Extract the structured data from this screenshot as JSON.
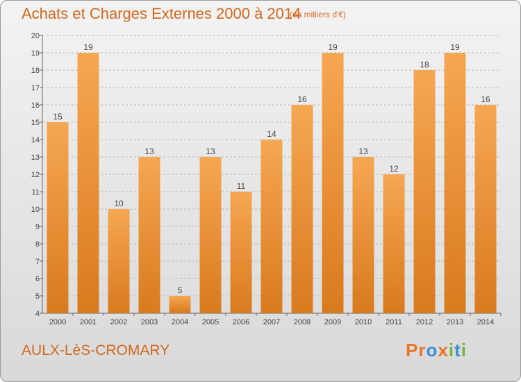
{
  "header": {
    "title": "Achats et Charges Externes 2000 à 2014",
    "subtitle": "(en milliers d'€)"
  },
  "footer": {
    "commune": "AULX-LèS-CROMARY",
    "logo_text": "Proxiti",
    "logo_letters": [
      {
        "ch": "P",
        "color": "#e8752a"
      },
      {
        "ch": "r",
        "color": "#e8752a"
      },
      {
        "ch": "o",
        "color": "#3a8fd6"
      },
      {
        "ch": "x",
        "color": "#e8752a"
      },
      {
        "ch": "i",
        "color": "#7ab33b"
      },
      {
        "ch": "t",
        "color": "#3a8fd6"
      },
      {
        "ch": "i",
        "color": "#7ab33b"
      }
    ]
  },
  "colors": {
    "accent": "#d2691e",
    "bar_light": "#f6a752",
    "bar_dark": "#d97a1e",
    "grid": "#b8b8b8"
  },
  "chart_data": {
    "type": "bar",
    "title": "Achats et Charges Externes 2000 à 2014",
    "subtitle": "(en milliers d'€)",
    "categories": [
      "2000",
      "2001",
      "2002",
      "2003",
      "2004",
      "2005",
      "2006",
      "2007",
      "2008",
      "2009",
      "2010",
      "2011",
      "2012",
      "2013",
      "2014"
    ],
    "values": [
      15,
      19,
      10,
      13,
      5,
      13,
      11,
      14,
      16,
      19,
      13,
      12,
      18,
      19,
      16
    ],
    "ylim": [
      4,
      20
    ],
    "yticks": [
      4,
      5,
      6,
      7,
      8,
      9,
      10,
      11,
      12,
      13,
      14,
      15,
      16,
      17,
      18,
      19,
      20
    ],
    "grid": "horizontal dashed",
    "data_labels": true,
    "xlabel": "",
    "ylabel": ""
  }
}
